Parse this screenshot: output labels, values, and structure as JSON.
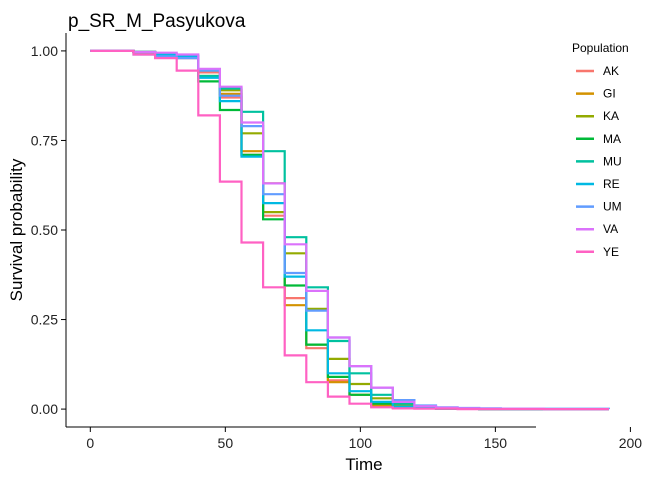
{
  "chart_data": {
    "type": "line",
    "step": true,
    "title": "p_SR_M_Pasyukova",
    "xlabel": "Time",
    "ylabel": "Survival probability",
    "xlim": [
      -9,
      208
    ],
    "ylim": [
      -0.05,
      1.05
    ],
    "xticks": [
      0,
      50,
      100,
      150,
      200
    ],
    "yticks": [
      0,
      0.25,
      0.5,
      0.75,
      1
    ],
    "ytick_labels": [
      "0.00",
      "0.25",
      "0.50",
      "0.75",
      "1.00"
    ],
    "grid": false,
    "legend": {
      "title": "Population",
      "position": "right"
    },
    "x": [
      0,
      8,
      16,
      24,
      32,
      40,
      48,
      56,
      64,
      72,
      80,
      88,
      96,
      104,
      112,
      120,
      128,
      136,
      144,
      152,
      160,
      168,
      176,
      184,
      192
    ],
    "series": [
      {
        "name": "AK",
        "color": "#F8766D",
        "values": [
          1,
          1,
          0.997,
          0.99,
          0.98,
          0.94,
          0.87,
          0.71,
          0.54,
          0.31,
          0.17,
          0.08,
          0.04,
          0.01,
          0.004,
          0.002,
          0.001,
          0.001,
          0,
          0,
          0,
          0,
          0,
          0,
          0
        ]
      },
      {
        "name": "GI",
        "color": "#D39200",
        "values": [
          1,
          1,
          0.997,
          0.99,
          0.985,
          0.945,
          0.88,
          0.72,
          0.63,
          0.29,
          0.18,
          0.075,
          0.04,
          0.01,
          0.004,
          0.002,
          0.001,
          0.001,
          0,
          0,
          0,
          0,
          0,
          0,
          0
        ]
      },
      {
        "name": "KA",
        "color": "#93AA00",
        "values": [
          1,
          1,
          0.997,
          0.99,
          0.985,
          0.93,
          0.89,
          0.77,
          0.55,
          0.435,
          0.28,
          0.14,
          0.07,
          0.03,
          0.01,
          0.004,
          0.002,
          0.001,
          0.001,
          0,
          0,
          0,
          0,
          0,
          0
        ]
      },
      {
        "name": "MA",
        "color": "#00BA38",
        "values": [
          1,
          1,
          0.997,
          0.99,
          0.985,
          0.915,
          0.835,
          0.71,
          0.53,
          0.345,
          0.18,
          0.09,
          0.04,
          0.015,
          0.005,
          0.002,
          0.001,
          0.001,
          0,
          0,
          0,
          0,
          0,
          0,
          0
        ]
      },
      {
        "name": "MU",
        "color": "#00C19F",
        "values": [
          1,
          1,
          0.997,
          0.99,
          0.985,
          0.93,
          0.895,
          0.83,
          0.72,
          0.48,
          0.34,
          0.19,
          0.1,
          0.04,
          0.015,
          0.005,
          0.002,
          0.001,
          0.001,
          0,
          0,
          0,
          0,
          0,
          0
        ]
      },
      {
        "name": "RE",
        "color": "#00B9E3",
        "values": [
          1,
          1,
          0.997,
          0.99,
          0.985,
          0.925,
          0.86,
          0.705,
          0.575,
          0.37,
          0.22,
          0.1,
          0.05,
          0.02,
          0.007,
          0.003,
          0.001,
          0.001,
          0,
          0,
          0,
          0,
          0,
          0,
          0
        ]
      },
      {
        "name": "UM",
        "color": "#619CFF",
        "values": [
          1,
          1,
          0.99,
          0.985,
          0.98,
          0.945,
          0.875,
          0.79,
          0.6,
          0.38,
          0.275,
          0.2,
          0.12,
          0.06,
          0.025,
          0.01,
          0.005,
          0.003,
          0.002,
          0.001,
          0.001,
          0.001,
          0.001,
          0.001,
          0
        ]
      },
      {
        "name": "VA",
        "color": "#DB72FB",
        "values": [
          1,
          1,
          0.997,
          0.995,
          0.99,
          0.95,
          0.9,
          0.8,
          0.63,
          0.46,
          0.33,
          0.2,
          0.12,
          0.06,
          0.02,
          0.008,
          0.004,
          0.002,
          0.001,
          0.001,
          0.001,
          0,
          0,
          0,
          0
        ]
      },
      {
        "name": "YE",
        "color": "#FF61C3",
        "values": [
          1,
          1,
          0.99,
          0.98,
          0.945,
          0.82,
          0.635,
          0.465,
          0.34,
          0.15,
          0.075,
          0.035,
          0.015,
          0.005,
          0.002,
          0.001,
          0.001,
          0,
          0,
          0,
          0,
          0,
          0,
          0,
          0
        ]
      }
    ]
  }
}
